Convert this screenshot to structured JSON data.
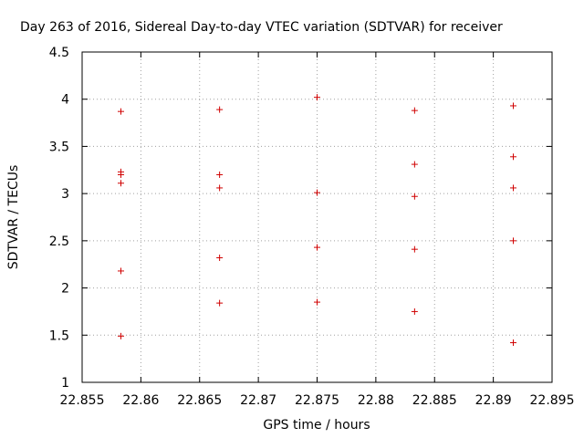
{
  "chart_data": {
    "type": "scatter",
    "title": "Day 263 of 2016, Sidereal Day-to-day VTEC variation (SDTVAR) for receiver ",
    "xlabel": "GPS time / hours",
    "ylabel": "SDTVAR / TECUs",
    "xlim": [
      22.855,
      22.895
    ],
    "ylim": [
      1,
      4.5
    ],
    "x_ticks": [
      "22.855",
      "22.86",
      "22.865",
      "22.87",
      "22.875",
      "22.88",
      "22.885",
      "22.89",
      "22.895"
    ],
    "y_ticks": [
      "1",
      "1.5",
      "2",
      "2.5",
      "3",
      "3.5",
      "4",
      "4.5"
    ],
    "grid": true,
    "series": [
      {
        "color": "#d00000",
        "marker": "plus",
        "points": [
          {
            "x": 22.8583,
            "y": 3.87
          },
          {
            "x": 22.8583,
            "y": 3.23
          },
          {
            "x": 22.8583,
            "y": 3.2
          },
          {
            "x": 22.8583,
            "y": 3.11
          },
          {
            "x": 22.8583,
            "y": 2.18
          },
          {
            "x": 22.8583,
            "y": 1.49
          },
          {
            "x": 22.8667,
            "y": 3.89
          },
          {
            "x": 22.8667,
            "y": 3.2
          },
          {
            "x": 22.8667,
            "y": 3.06
          },
          {
            "x": 22.8667,
            "y": 2.32
          },
          {
            "x": 22.8667,
            "y": 1.84
          },
          {
            "x": 22.875,
            "y": 4.02
          },
          {
            "x": 22.875,
            "y": 3.01
          },
          {
            "x": 22.875,
            "y": 2.43
          },
          {
            "x": 22.875,
            "y": 1.85
          },
          {
            "x": 22.8833,
            "y": 3.88
          },
          {
            "x": 22.8833,
            "y": 3.31
          },
          {
            "x": 22.8833,
            "y": 2.97
          },
          {
            "x": 22.8833,
            "y": 2.41
          },
          {
            "x": 22.8833,
            "y": 1.75
          },
          {
            "x": 22.8917,
            "y": 3.93
          },
          {
            "x": 22.8917,
            "y": 3.39
          },
          {
            "x": 22.8917,
            "y": 3.06
          },
          {
            "x": 22.8917,
            "y": 2.5
          },
          {
            "x": 22.8917,
            "y": 1.42
          }
        ]
      }
    ]
  }
}
